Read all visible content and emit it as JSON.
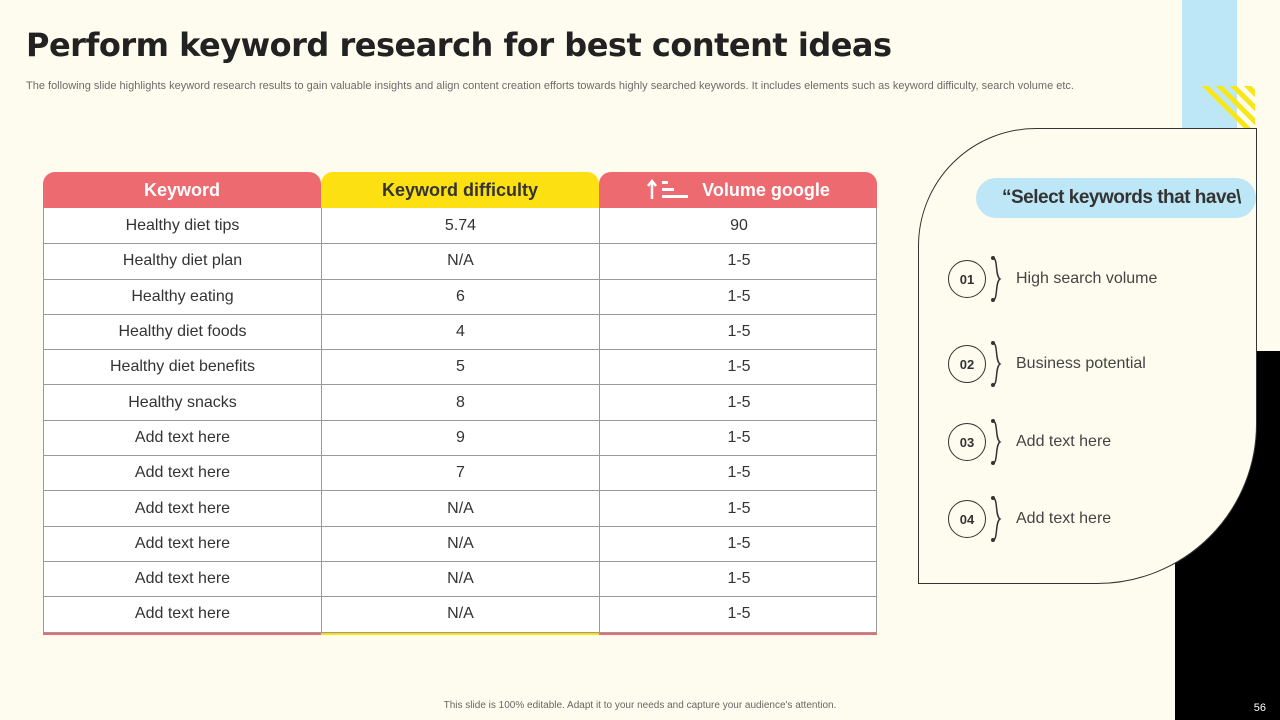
{
  "title": "Perform keyword research for best content ideas",
  "subtitle": "The following slide highlights keyword research results to gain valuable insights and align content creation efforts towards highly searched keywords. It includes elements such as keyword difficulty, search volume etc.",
  "table": {
    "headers": [
      "Keyword",
      "Keyword difficulty",
      "Volume google"
    ],
    "rows": [
      [
        "Healthy diet tips",
        "5.74",
        "90"
      ],
      [
        "Healthy diet plan",
        "N/A",
        "1-5"
      ],
      [
        "Healthy eating",
        "6",
        "1-5"
      ],
      [
        "Healthy diet foods",
        "4",
        "1-5"
      ],
      [
        "Healthy diet benefits",
        "5",
        "1-5"
      ],
      [
        "Healthy snacks",
        "8",
        "1-5"
      ],
      [
        "Add text here",
        "9",
        "1-5"
      ],
      [
        "Add text here",
        "7",
        "1-5"
      ],
      [
        "Add text here",
        "N/A",
        "1-5"
      ],
      [
        "Add text here",
        "N/A",
        "1-5"
      ],
      [
        "Add text here",
        "N/A",
        "1-5"
      ],
      [
        "Add text here",
        "N/A",
        "1-5"
      ]
    ]
  },
  "panel": {
    "heading": "“Select keywords that have\\",
    "items": [
      {
        "num": "01",
        "label": "High search volume"
      },
      {
        "num": "02",
        "label": "Business potential"
      },
      {
        "num": "03",
        "label": "Add text here"
      },
      {
        "num": "04",
        "label": "Add text here"
      }
    ]
  },
  "footer": "This slide is 100% editable.  Adapt it to your needs and capture your audience's attention.",
  "page_number": "56",
  "colors": {
    "header_red": "#ec6a70",
    "header_yellow": "#fde012",
    "accent_blue": "#bde6f7",
    "background": "#fefcee"
  }
}
